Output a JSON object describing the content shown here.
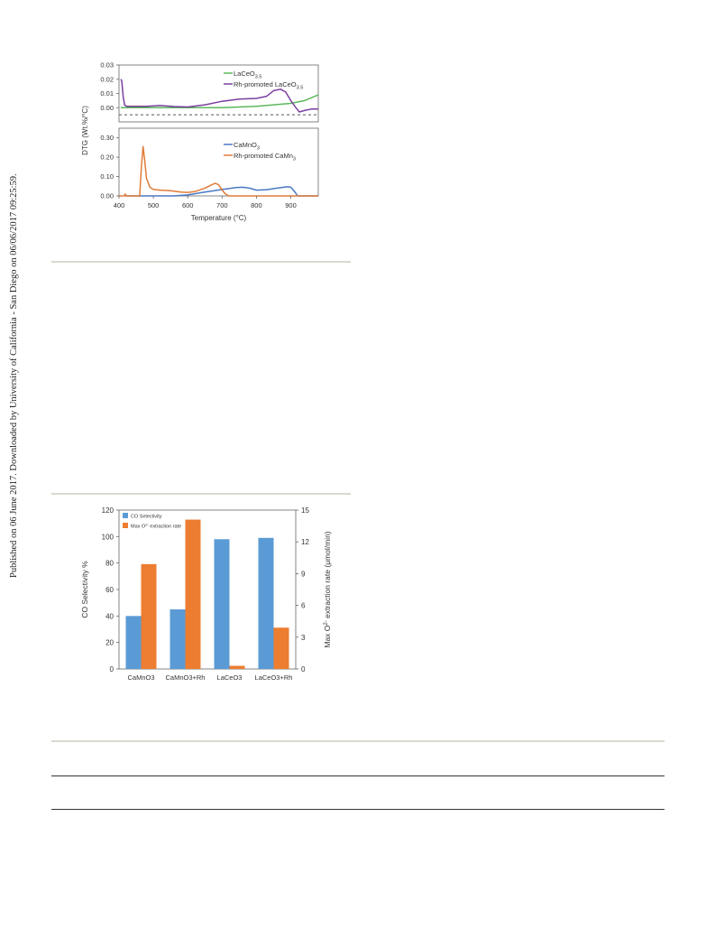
{
  "watermark": {
    "text": "Published on 06 June 2017. Downloaded by University of California - San Diego on 06/06/2017 09:25:59."
  },
  "chart_data": [
    {
      "type": "line",
      "xlabel": "Temperature (°C)",
      "ylabel": "DTG (Wt.%/°C)",
      "x_ticks": [
        "400",
        "500",
        "600",
        "700",
        "800",
        "900"
      ],
      "xlim": [
        400,
        980
      ],
      "panels": [
        {
          "name": "top",
          "ylim": [
            -0.01,
            0.03
          ],
          "y_ticks": [
            "0.03",
            "0.02",
            "0.01",
            "0.00"
          ],
          "y_tick_values": [
            0.03,
            0.02,
            0.01,
            0.0
          ],
          "dashed_line_y": -0.005,
          "series": [
            {
              "name": "LaCeO3.5",
              "color": "#5cb85c",
              "legend": {
                "base": "LaCeO",
                "sub": "3.5"
              },
              "x": [
                405,
                430,
                500,
                600,
                700,
                750,
                800,
                850,
                900,
                940,
                980
              ],
              "y": [
                0.0,
                0.0,
                0.0,
                0.0,
                0.0,
                0.0005,
                0.001,
                0.002,
                0.003,
                0.005,
                0.009
              ]
            },
            {
              "name": "Rh-promoted LaCeO3.5",
              "color": "#7b3fa0",
              "legend": {
                "base": "Rh-promoted LaCeO",
                "sub": "3.5"
              },
              "x": [
                405,
                408,
                412,
                416,
                422,
                440,
                480,
                520,
                560,
                600,
                650,
                700,
                750,
                800,
                830,
                850,
                870,
                885,
                900,
                915,
                925,
                940,
                960,
                980
              ],
              "y": [
                0.02,
                0.019,
                0.008,
                0.002,
                0.001,
                0.001,
                0.001,
                0.0015,
                0.0008,
                0.0005,
                0.002,
                0.0045,
                0.006,
                0.0065,
                0.008,
                0.012,
                0.013,
                0.011,
                0.005,
                0.0,
                -0.003,
                -0.002,
                -0.001,
                -0.001
              ]
            }
          ]
        },
        {
          "name": "bottom",
          "ylim": [
            0,
            0.35
          ],
          "y_ticks": [
            "0.30",
            "0.20",
            "0.10",
            "0.00"
          ],
          "y_tick_values": [
            0.3,
            0.2,
            0.1,
            0.0
          ],
          "series": [
            {
              "name": "CaMnO3",
              "color": "#4a78c4",
              "legend": {
                "base": "CaMnO",
                "sub": "3"
              },
              "x": [
                420,
                500,
                560,
                600,
                650,
                700,
                740,
                760,
                780,
                800,
                830,
                860,
                890,
                900,
                910,
                920,
                940,
                980
              ],
              "y": [
                0.0,
                0.0,
                0.0,
                0.005,
                0.02,
                0.033,
                0.043,
                0.045,
                0.04,
                0.03,
                0.032,
                0.04,
                0.047,
                0.045,
                0.025,
                0.0,
                0.0,
                0.0
              ],
              "x_label_note": ""
            },
            {
              "name": "Rh-promoted CaMn3",
              "color": "#e07b39",
              "legend": {
                "base": "Rh-promoted CaMn",
                "sub": "3"
              },
              "x": [
                400,
                415,
                418,
                421,
                430,
                460,
                465,
                470,
                475,
                480,
                490,
                500,
                520,
                550,
                580,
                600,
                620,
                650,
                670,
                680,
                690,
                700,
                710,
                720,
                980
              ],
              "y": [
                0.0,
                0.0,
                0.01,
                0.0,
                0.0,
                0.0,
                0.15,
                0.255,
                0.18,
                0.09,
                0.045,
                0.033,
                0.03,
                0.027,
                0.02,
                0.018,
                0.022,
                0.04,
                0.058,
                0.065,
                0.058,
                0.03,
                0.01,
                0.0,
                0.0
              ]
            }
          ]
        }
      ]
    },
    {
      "type": "bar",
      "categories": [
        "CaMnO3",
        "CaMnO3+Rh",
        "LaCeO3",
        "LaCeO3+Rh"
      ],
      "ylabel": "CO Selectivity %",
      "y2label": "Max O2- extraction rate (μmol/min)",
      "ylim": [
        0,
        120
      ],
      "y2lim": [
        0,
        15
      ],
      "y_ticks": [
        "120",
        "100",
        "80",
        "60",
        "40",
        "20",
        "0"
      ],
      "y_tick_values": [
        120,
        100,
        80,
        60,
        40,
        20,
        0
      ],
      "y2_ticks": [
        "15",
        "12",
        "9",
        "6",
        "3",
        "0"
      ],
      "y2_tick_values": [
        15,
        12,
        9,
        6,
        3,
        0
      ],
      "legend_position": "top-left",
      "series": [
        {
          "name": "CO Selectivity",
          "axis": "left",
          "color": "#5b9bd5",
          "values": [
            40,
            45,
            98,
            99
          ]
        },
        {
          "name": "Max O2- extraction rate",
          "axis": "right",
          "color": "#ed7d31",
          "values": [
            9.9,
            14.1,
            0.3,
            3.9
          ]
        }
      ],
      "legend_labels": {
        "co": "CO Selectivity",
        "max_base": "Max O",
        "max_sup": "2-",
        "max_rest": " extraction rate"
      },
      "y2label_parts": {
        "base": "Max O",
        "sup": "2-",
        "rest": " extraction rate (μmol/min)"
      }
    }
  ]
}
